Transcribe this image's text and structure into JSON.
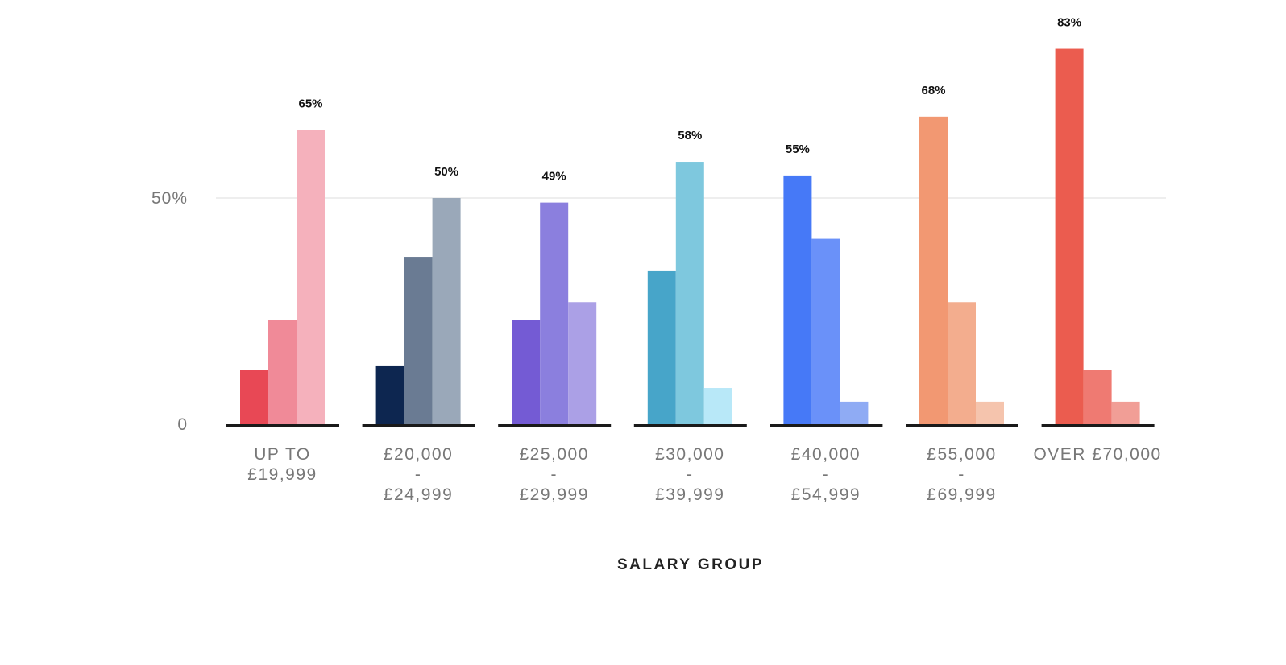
{
  "chart_data": {
    "type": "bar",
    "xlabel": "SALARY GROUP",
    "ylabel": "",
    "ylim": [
      0,
      100
    ],
    "yticks": [
      {
        "value": 0,
        "label": "0"
      },
      {
        "value": 50,
        "label": "50%"
      }
    ],
    "grid": {
      "y": true,
      "values": [
        50
      ]
    },
    "categories": [
      {
        "lines": [
          "UP TO",
          "£19,999"
        ]
      },
      {
        "lines": [
          "£20,000",
          "-",
          "£24,999"
        ]
      },
      {
        "lines": [
          "£25,000",
          "-",
          "£29,999"
        ]
      },
      {
        "lines": [
          "£30,000",
          "-",
          "£39,999"
        ]
      },
      {
        "lines": [
          "£40,000",
          "-",
          "£54,999"
        ]
      },
      {
        "lines": [
          "£55,000",
          "-",
          "£69,999"
        ]
      },
      {
        "lines": [
          "OVER £70,000"
        ]
      }
    ],
    "groups": [
      {
        "values": [
          12,
          23,
          65
        ],
        "colors": [
          "#e84855",
          "#f08a98",
          "#f5b1bc"
        ],
        "label": "65%",
        "label_index": 2
      },
      {
        "values": [
          13,
          37,
          50
        ],
        "colors": [
          "#0d2650",
          "#6a7b93",
          "#9aa8b9"
        ],
        "label": "50%",
        "label_index": 2
      },
      {
        "values": [
          23,
          49,
          27
        ],
        "colors": [
          "#745bd4",
          "#8b7fde",
          "#aba0e6"
        ],
        "label": "49%",
        "label_index": 1
      },
      {
        "values": [
          34,
          58,
          8
        ],
        "colors": [
          "#47a5c9",
          "#7ec8de",
          "#b8e8f8"
        ],
        "label": "58%",
        "label_index": 1
      },
      {
        "values": [
          55,
          41,
          5
        ],
        "colors": [
          "#4679f7",
          "#6a91f9",
          "#8fabf4"
        ],
        "label": "55%",
        "label_index": 0
      },
      {
        "values": [
          68,
          27,
          5
        ],
        "colors": [
          "#f29872",
          "#f3ad8e",
          "#f5c4ad"
        ],
        "label": "68%",
        "label_index": 0
      },
      {
        "values": [
          83,
          12,
          5
        ],
        "colors": [
          "#eb5c4f",
          "#ef7a72",
          "#f19e96"
        ],
        "label": "83%",
        "label_index": 0
      }
    ]
  }
}
